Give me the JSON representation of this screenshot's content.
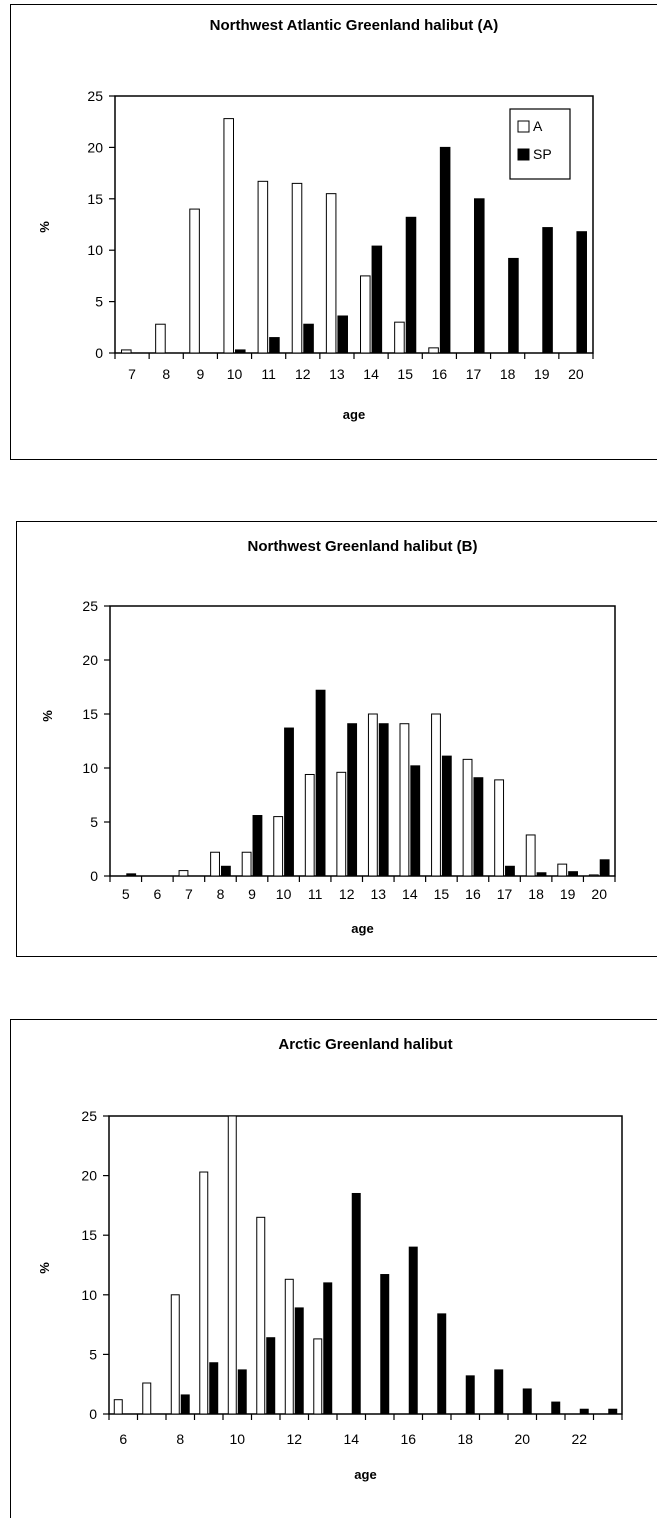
{
  "chart_data": [
    {
      "type": "bar",
      "title": "Northwest Atlantic Greenland halibut (A)",
      "xlabel": "age",
      "ylabel": "%",
      "ylim": [
        0,
        25
      ],
      "yticks": [
        0,
        5,
        10,
        15,
        20,
        25
      ],
      "categories": [
        "7",
        "8",
        "9",
        "10",
        "11",
        "12",
        "13",
        "14",
        "15",
        "16",
        "17",
        "18",
        "19",
        "20"
      ],
      "series": [
        {
          "name": "A",
          "color": "#ffffff",
          "values": [
            0.3,
            2.8,
            14.0,
            22.8,
            16.7,
            16.5,
            15.5,
            7.5,
            3.0,
            0.5,
            0,
            0,
            0,
            0
          ]
        },
        {
          "name": "SP",
          "color": "#000000",
          "values": [
            0,
            0,
            0,
            0.3,
            1.5,
            2.8,
            3.6,
            10.4,
            13.2,
            20.0,
            15.0,
            9.2,
            12.2,
            11.8
          ]
        }
      ],
      "legend": "top-right",
      "grid": false
    },
    {
      "type": "bar",
      "title": "Northwest Greenland halibut (B)",
      "xlabel": "age",
      "ylabel": "%",
      "ylim": [
        0,
        25
      ],
      "yticks": [
        0,
        5,
        10,
        15,
        20,
        25
      ],
      "categories": [
        "5",
        "6",
        "7",
        "8",
        "9",
        "10",
        "11",
        "12",
        "13",
        "14",
        "15",
        "16",
        "17",
        "18",
        "19",
        "20"
      ],
      "series": [
        {
          "name": "A",
          "color": "#ffffff",
          "values": [
            0,
            0,
            0.5,
            2.2,
            2.2,
            5.5,
            9.4,
            9.6,
            15.0,
            14.1,
            15.0,
            10.8,
            8.9,
            3.8,
            1.1,
            0.1
          ]
        },
        {
          "name": "SP",
          "color": "#000000",
          "values": [
            0.2,
            0,
            0,
            0.9,
            5.6,
            13.7,
            17.2,
            14.1,
            14.1,
            10.2,
            11.1,
            9.1,
            0.9,
            0.3,
            0.4,
            1.5
          ]
        }
      ],
      "legend": "none",
      "grid": false
    },
    {
      "type": "bar",
      "title": "Arctic Greenland halibut",
      "xlabel": "age",
      "ylabel": "%",
      "ylim": [
        0,
        25
      ],
      "yticks": [
        0,
        5,
        10,
        15,
        20,
        25
      ],
      "categories": [
        "6",
        "7",
        "8",
        "9",
        "10",
        "11",
        "12",
        "13",
        "14",
        "15",
        "16",
        "17",
        "18",
        "19",
        "20",
        "21",
        "22",
        "23"
      ],
      "tick_labels": [
        "6",
        "",
        "8",
        "",
        "10",
        "",
        "12",
        "",
        "14",
        "",
        "16",
        "",
        "18",
        "",
        "20",
        "",
        "22",
        ""
      ],
      "series": [
        {
          "name": "A",
          "color": "#ffffff",
          "values": [
            1.2,
            2.6,
            10.0,
            20.3,
            25.0,
            16.5,
            11.3,
            6.3,
            0,
            0,
            0,
            0,
            0,
            0,
            0,
            0,
            0,
            0
          ]
        },
        {
          "name": "SP",
          "color": "#000000",
          "values": [
            0,
            0,
            1.6,
            4.3,
            3.7,
            6.4,
            8.9,
            11.0,
            18.5,
            11.7,
            14.0,
            8.4,
            3.2,
            3.7,
            2.1,
            1.0,
            0.4,
            0.4
          ]
        }
      ],
      "legend": "none",
      "grid": false
    }
  ]
}
